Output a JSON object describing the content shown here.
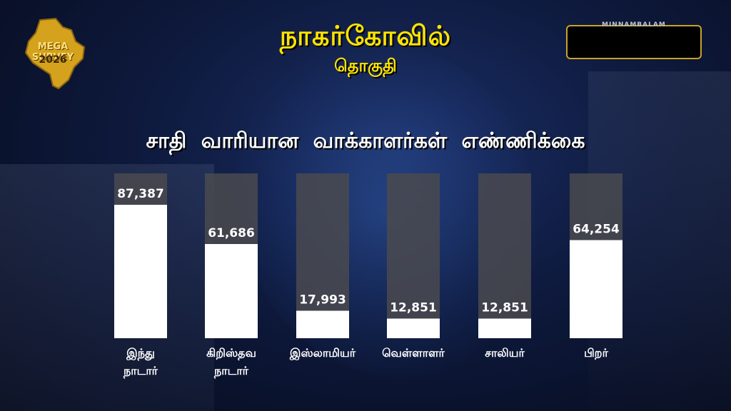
{
  "header": {
    "title": "நாகர்கோவில்",
    "subtitle": "தொகுதி",
    "brand": "MINNAMBALAM"
  },
  "logo": {
    "line1": "MEGA SURVEY",
    "line2": "2026"
  },
  "colors": {
    "accent": "#ffe400",
    "bar_fill": "#ffffff",
    "bar_track": "#4a4a4f"
  },
  "chart_data": {
    "type": "bar",
    "title": "சாதி வாரியான வாக்காளர்கள் எண்ணிக்கை",
    "categories": [
      [
        "இந்து",
        "நாடார்"
      ],
      [
        "கிறிஸ்தவ",
        "நாடார்"
      ],
      [
        "இஸ்லாமியர்"
      ],
      [
        "வெள்ளாளர்"
      ],
      [
        "சாலியர்"
      ],
      [
        "பிறர்"
      ]
    ],
    "values": [
      87387,
      61686,
      17993,
      12851,
      12851,
      64254
    ],
    "value_labels": [
      "87,387",
      "61,686",
      "17,993",
      "12,851",
      "12,851",
      "64,254"
    ],
    "ylim": [
      0,
      87387
    ],
    "grid": false,
    "legend": "none"
  }
}
